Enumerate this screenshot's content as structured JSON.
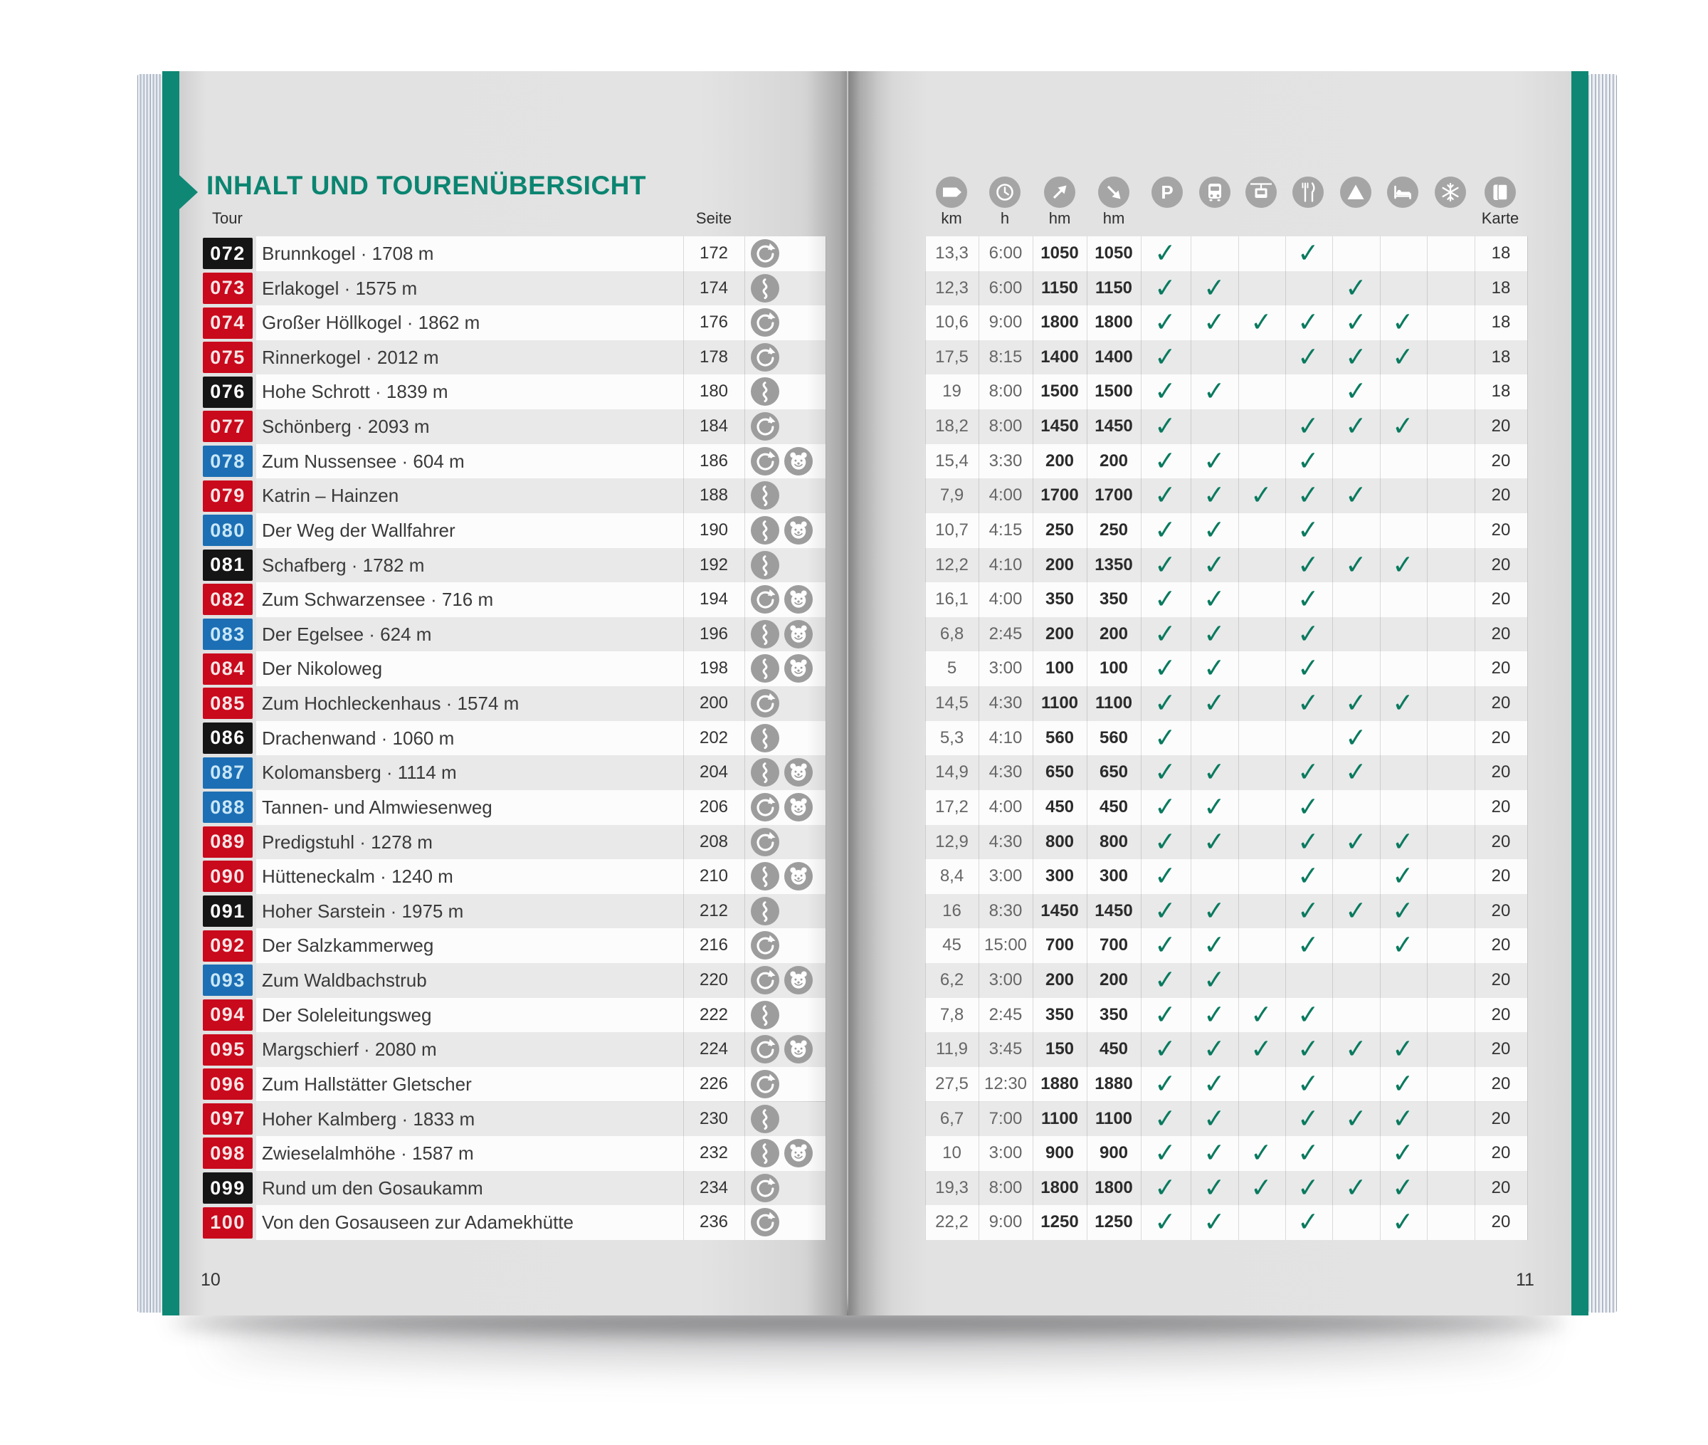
{
  "book": {
    "title": "INHALT UND TOURENÜBERSICHT",
    "page_left_number": "10",
    "page_right_number": "11",
    "columns": {
      "tour": "Tour",
      "seite": "Seite",
      "karte": "Karte"
    },
    "colors": {
      "teal_band": "#0E8875",
      "title": "#0B8571",
      "check": "#0A7A5F",
      "badge_red": "#C9091C",
      "badge_blue": "#1C6FB4",
      "badge_black": "#151515",
      "icon_gray": "#9d9d9d"
    },
    "header_columns": [
      {
        "name": "distance",
        "icon": "signpost-icon",
        "label": "km"
      },
      {
        "name": "duration",
        "icon": "clock-icon",
        "label": "h"
      },
      {
        "name": "ascent",
        "icon": "ascent-arrow-icon",
        "label": "hm"
      },
      {
        "name": "descent",
        "icon": "descent-arrow-icon",
        "label": "hm"
      },
      {
        "name": "parking",
        "icon": "parking-icon",
        "label": ""
      },
      {
        "name": "bus",
        "icon": "bus-icon",
        "label": ""
      },
      {
        "name": "cable-car",
        "icon": "cable-car-icon",
        "label": ""
      },
      {
        "name": "restaurant",
        "icon": "restaurant-icon",
        "label": ""
      },
      {
        "name": "mountain",
        "icon": "mountain-icon",
        "label": ""
      },
      {
        "name": "accommodation",
        "icon": "bed-icon",
        "label": ""
      },
      {
        "name": "winter",
        "icon": "snowflake-icon",
        "label": ""
      },
      {
        "name": "map",
        "icon": "map-icon",
        "label": "Karte"
      }
    ]
  },
  "tours": [
    {
      "nr": "072",
      "level": "black",
      "name": "Brunnkogel · 1708 m",
      "seite": "172",
      "route": "loop",
      "family": false,
      "km": "13,3",
      "h": "6:00",
      "up": "1050",
      "dn": "1050",
      "fac": [
        1,
        0,
        0,
        1,
        0,
        0,
        0
      ],
      "karte": "18"
    },
    {
      "nr": "073",
      "level": "red",
      "name": "Erlakogel · 1575 m",
      "seite": "174",
      "route": "line",
      "family": false,
      "km": "12,3",
      "h": "6:00",
      "up": "1150",
      "dn": "1150",
      "fac": [
        1,
        1,
        0,
        0,
        1,
        0,
        0
      ],
      "karte": "18"
    },
    {
      "nr": "074",
      "level": "red",
      "name": "Großer Höllkogel · 1862 m",
      "seite": "176",
      "route": "loop",
      "family": false,
      "km": "10,6",
      "h": "9:00",
      "up": "1800",
      "dn": "1800",
      "fac": [
        1,
        1,
        1,
        1,
        1,
        1,
        0
      ],
      "karte": "18"
    },
    {
      "nr": "075",
      "level": "red",
      "name": "Rinnerkogel · 2012 m",
      "seite": "178",
      "route": "loop",
      "family": false,
      "km": "17,5",
      "h": "8:15",
      "up": "1400",
      "dn": "1400",
      "fac": [
        1,
        0,
        0,
        1,
        1,
        1,
        0
      ],
      "karte": "18"
    },
    {
      "nr": "076",
      "level": "black",
      "name": "Hohe Schrott · 1839 m",
      "seite": "180",
      "route": "line",
      "family": false,
      "km": "19",
      "h": "8:00",
      "up": "1500",
      "dn": "1500",
      "fac": [
        1,
        1,
        0,
        0,
        1,
        0,
        0
      ],
      "karte": "18"
    },
    {
      "nr": "077",
      "level": "red",
      "name": "Schönberg · 2093 m",
      "seite": "184",
      "route": "loop",
      "family": false,
      "km": "18,2",
      "h": "8:00",
      "up": "1450",
      "dn": "1450",
      "fac": [
        1,
        0,
        0,
        1,
        1,
        1,
        0
      ],
      "karte": "20"
    },
    {
      "nr": "078",
      "level": "blue",
      "name": "Zum Nussensee · 604 m",
      "seite": "186",
      "route": "loop",
      "family": true,
      "km": "15,4",
      "h": "3:30",
      "up": "200",
      "dn": "200",
      "fac": [
        1,
        1,
        0,
        1,
        0,
        0,
        0
      ],
      "karte": "20"
    },
    {
      "nr": "079",
      "level": "red",
      "name": "Katrin – Hainzen",
      "seite": "188",
      "route": "line",
      "family": false,
      "km": "7,9",
      "h": "4:00",
      "up": "1700",
      "dn": "1700",
      "fac": [
        1,
        1,
        1,
        1,
        1,
        0,
        0
      ],
      "karte": "20"
    },
    {
      "nr": "080",
      "level": "blue",
      "name": "Der Weg der Wallfahrer",
      "seite": "190",
      "route": "line",
      "family": true,
      "km": "10,7",
      "h": "4:15",
      "up": "250",
      "dn": "250",
      "fac": [
        1,
        1,
        0,
        1,
        0,
        0,
        0
      ],
      "karte": "20"
    },
    {
      "nr": "081",
      "level": "black",
      "name": "Schafberg · 1782 m",
      "seite": "192",
      "route": "line",
      "family": false,
      "km": "12,2",
      "h": "4:10",
      "up": "200",
      "dn": "1350",
      "fac": [
        1,
        1,
        0,
        1,
        1,
        1,
        0
      ],
      "karte": "20"
    },
    {
      "nr": "082",
      "level": "red",
      "name": "Zum Schwarzensee · 716 m",
      "seite": "194",
      "route": "loop",
      "family": true,
      "km": "16,1",
      "h": "4:00",
      "up": "350",
      "dn": "350",
      "fac": [
        1,
        1,
        0,
        1,
        0,
        0,
        0
      ],
      "karte": "20"
    },
    {
      "nr": "083",
      "level": "blue",
      "name": "Der Egelsee · 624 m",
      "seite": "196",
      "route": "line",
      "family": true,
      "km": "6,8",
      "h": "2:45",
      "up": "200",
      "dn": "200",
      "fac": [
        1,
        1,
        0,
        1,
        0,
        0,
        0
      ],
      "karte": "20"
    },
    {
      "nr": "084",
      "level": "red",
      "name": "Der Nikoloweg",
      "seite": "198",
      "route": "line",
      "family": true,
      "km": "5",
      "h": "3:00",
      "up": "100",
      "dn": "100",
      "fac": [
        1,
        1,
        0,
        1,
        0,
        0,
        0
      ],
      "karte": "20"
    },
    {
      "nr": "085",
      "level": "red",
      "name": "Zum Hochleckenhaus · 1574 m",
      "seite": "200",
      "route": "loop",
      "family": false,
      "km": "14,5",
      "h": "4:30",
      "up": "1100",
      "dn": "1100",
      "fac": [
        1,
        1,
        0,
        1,
        1,
        1,
        0
      ],
      "karte": "20"
    },
    {
      "nr": "086",
      "level": "black",
      "name": "Drachenwand · 1060 m",
      "seite": "202",
      "route": "line",
      "family": false,
      "km": "5,3",
      "h": "4:10",
      "up": "560",
      "dn": "560",
      "fac": [
        1,
        0,
        0,
        0,
        1,
        0,
        0
      ],
      "karte": "20"
    },
    {
      "nr": "087",
      "level": "blue",
      "name": "Kolomansberg · 1114 m",
      "seite": "204",
      "route": "line",
      "family": true,
      "km": "14,9",
      "h": "4:30",
      "up": "650",
      "dn": "650",
      "fac": [
        1,
        1,
        0,
        1,
        1,
        0,
        0
      ],
      "karte": "20"
    },
    {
      "nr": "088",
      "level": "blue",
      "name": "Tannen- und Almwiesenweg",
      "seite": "206",
      "route": "loop",
      "family": true,
      "km": "17,2",
      "h": "4:00",
      "up": "450",
      "dn": "450",
      "fac": [
        1,
        1,
        0,
        1,
        0,
        0,
        0
      ],
      "karte": "20"
    },
    {
      "nr": "089",
      "level": "red",
      "name": "Predigstuhl · 1278 m",
      "seite": "208",
      "route": "loop",
      "family": false,
      "km": "12,9",
      "h": "4:30",
      "up": "800",
      "dn": "800",
      "fac": [
        1,
        1,
        0,
        1,
        1,
        1,
        0
      ],
      "karte": "20"
    },
    {
      "nr": "090",
      "level": "red",
      "name": "Hütteneckalm · 1240 m",
      "seite": "210",
      "route": "line",
      "family": true,
      "km": "8,4",
      "h": "3:00",
      "up": "300",
      "dn": "300",
      "fac": [
        1,
        0,
        0,
        1,
        0,
        1,
        0
      ],
      "karte": "20"
    },
    {
      "nr": "091",
      "level": "black",
      "name": "Hoher Sarstein · 1975 m",
      "seite": "212",
      "route": "line",
      "family": false,
      "km": "16",
      "h": "8:30",
      "up": "1450",
      "dn": "1450",
      "fac": [
        1,
        1,
        0,
        1,
        1,
        1,
        0
      ],
      "karte": "20"
    },
    {
      "nr": "092",
      "level": "red",
      "name": "Der Salzkammerweg",
      "seite": "216",
      "route": "loop",
      "family": false,
      "km": "45",
      "h": "15:00",
      "up": "700",
      "dn": "700",
      "fac": [
        1,
        1,
        0,
        1,
        0,
        1,
        0
      ],
      "karte": "20"
    },
    {
      "nr": "093",
      "level": "blue",
      "name": "Zum Waldbachstrub",
      "seite": "220",
      "route": "loop",
      "family": true,
      "km": "6,2",
      "h": "3:00",
      "up": "200",
      "dn": "200",
      "fac": [
        1,
        1,
        0,
        0,
        0,
        0,
        0
      ],
      "karte": "20"
    },
    {
      "nr": "094",
      "level": "red",
      "name": "Der Soleleitungsweg",
      "seite": "222",
      "route": "line",
      "family": false,
      "km": "7,8",
      "h": "2:45",
      "up": "350",
      "dn": "350",
      "fac": [
        1,
        1,
        1,
        1,
        0,
        0,
        0
      ],
      "karte": "20"
    },
    {
      "nr": "095",
      "level": "red",
      "name": "Margschierf · 2080 m",
      "seite": "224",
      "route": "loop",
      "family": true,
      "km": "11,9",
      "h": "3:45",
      "up": "150",
      "dn": "450",
      "fac": [
        1,
        1,
        1,
        1,
        1,
        1,
        0
      ],
      "karte": "20"
    },
    {
      "nr": "096",
      "level": "red",
      "name": "Zum Hallstätter Gletscher",
      "seite": "226",
      "route": "loop",
      "family": false,
      "km": "27,5",
      "h": "12:30",
      "up": "1880",
      "dn": "1880",
      "fac": [
        1,
        1,
        0,
        1,
        0,
        1,
        0
      ],
      "karte": "20"
    },
    {
      "nr": "097",
      "level": "red",
      "name": "Hoher Kalmberg · 1833 m",
      "seite": "230",
      "route": "line",
      "family": false,
      "km": "6,7",
      "h": "7:00",
      "up": "1100",
      "dn": "1100",
      "fac": [
        1,
        1,
        0,
        1,
        1,
        1,
        0
      ],
      "karte": "20"
    },
    {
      "nr": "098",
      "level": "red",
      "name": "Zwieselalmhöhe · 1587 m",
      "seite": "232",
      "route": "line",
      "family": true,
      "km": "10",
      "h": "3:00",
      "up": "900",
      "dn": "900",
      "fac": [
        1,
        1,
        1,
        1,
        0,
        1,
        0
      ],
      "karte": "20"
    },
    {
      "nr": "099",
      "level": "black",
      "name": "Rund um den Gosaukamm",
      "seite": "234",
      "route": "loop",
      "family": false,
      "km": "19,3",
      "h": "8:00",
      "up": "1800",
      "dn": "1800",
      "fac": [
        1,
        1,
        1,
        1,
        1,
        1,
        0
      ],
      "karte": "20"
    },
    {
      "nr": "100",
      "level": "red",
      "name": "Von den Gosauseen zur Adamekhütte",
      "seite": "236",
      "route": "loop",
      "family": false,
      "km": "22,2",
      "h": "9:00",
      "up": "1250",
      "dn": "1250",
      "fac": [
        1,
        1,
        0,
        1,
        0,
        1,
        0
      ],
      "karte": "20"
    }
  ]
}
